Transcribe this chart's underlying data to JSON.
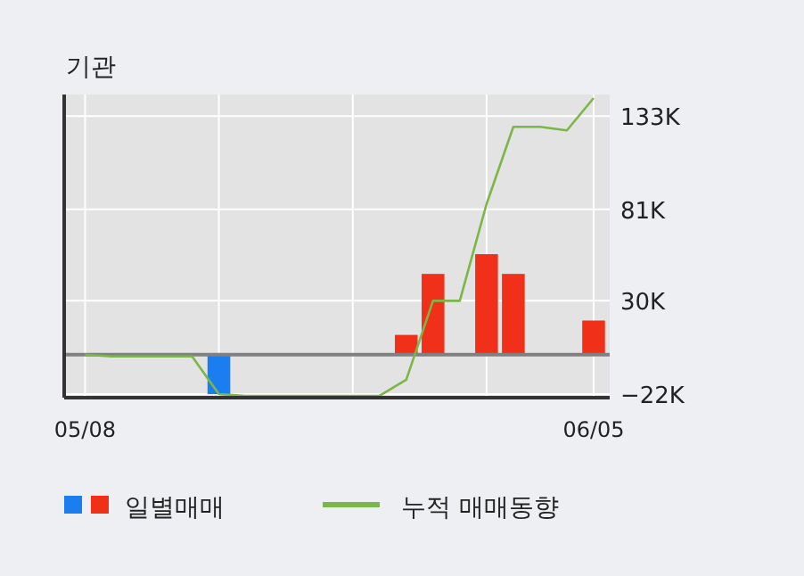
{
  "chart_data": {
    "type": "bar",
    "title": "기관",
    "categories": [
      "05/08",
      null,
      null,
      null,
      null,
      null,
      null,
      null,
      null,
      null,
      null,
      null,
      null,
      null,
      null,
      null,
      null,
      null,
      null,
      "06/05"
    ],
    "ylim": [
      -24,
      145
    ],
    "yticks": [
      {
        "value": -22,
        "label": "−22K"
      },
      {
        "value": 30,
        "label": "30K"
      },
      {
        "value": 81,
        "label": "81K"
      },
      {
        "value": 133,
        "label": "133K"
      }
    ],
    "grid": true,
    "legend": "bottom",
    "ref_lines": [
      {
        "axis": "y",
        "value": 0,
        "color": "#808080"
      }
    ],
    "series": [
      {
        "name": "일별매매",
        "values": [
          null,
          null,
          null,
          null,
          null,
          -22,
          null,
          null,
          null,
          null,
          null,
          null,
          11,
          45,
          null,
          56,
          45,
          null,
          null,
          19
        ],
        "colors": [
          null,
          null,
          null,
          null,
          null,
          "#1a7ef0",
          null,
          null,
          null,
          null,
          null,
          null,
          "#f03018",
          "#f03018",
          null,
          "#f03018",
          "#f03018",
          null,
          null,
          "#f03018"
        ]
      },
      {
        "name": "누적 매매동향",
        "type": "line",
        "color": "#7ab648",
        "values": [
          0,
          -1,
          -1,
          -1,
          -1,
          -22,
          -23,
          -23,
          -23,
          -23,
          -23,
          -23,
          -14,
          30,
          30,
          84,
          127,
          127,
          125,
          143
        ]
      }
    ]
  }
}
